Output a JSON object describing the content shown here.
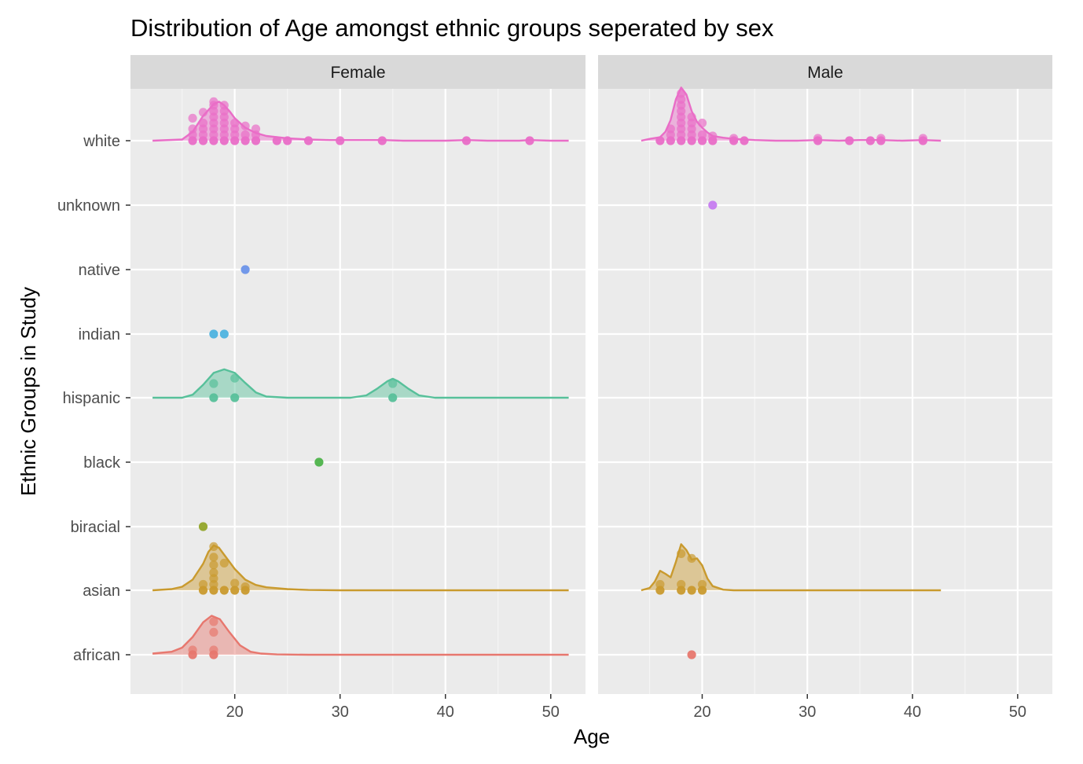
{
  "chart_data": {
    "type": "ridgeline-dotplot",
    "title": "Distribution of Age amongst ethnic groups seperated by sex",
    "xlabel": "Age",
    "ylabel": "Ethnic Groups in Study",
    "xlim": [
      10.1,
      53.3
    ],
    "x_ticks": [
      20,
      30,
      40,
      50
    ],
    "x_tick_labels": [
      "20",
      "30",
      "40",
      "50"
    ],
    "categories": [
      "african",
      "asian",
      "biracial",
      "black",
      "hispanic",
      "indian",
      "native",
      "unknown",
      "white"
    ],
    "grid": true,
    "legend": "none",
    "colors": {
      "african": "#E7776E",
      "asian": "#C99A2E",
      "biracial": "#92A52A",
      "black": "#4DB34A",
      "hispanic": "#57C09A",
      "indian": "#4EB3DF",
      "native": "#6B93E9",
      "unknown": "#C67CF0",
      "white": "#E96DC7"
    },
    "panels": [
      {
        "label": "Female",
        "series": [
          {
            "group": "african",
            "density": {
              "x": [
                12.2,
                14,
                15,
                16,
                17,
                17.8,
                18.6,
                19.5,
                20.5,
                21.5,
                22.5,
                24,
                27,
                30,
                35,
                40,
                45,
                50,
                51.7
              ],
              "y": [
                0.02,
                0.05,
                0.12,
                0.3,
                0.55,
                0.66,
                0.6,
                0.38,
                0.16,
                0.05,
                0.02,
                0.005,
                0,
                0,
                0,
                0,
                0,
                0,
                0
              ]
            },
            "points": [
              {
                "x": 16,
                "h": 0
              },
              {
                "x": 16,
                "h": 0.08
              },
              {
                "x": 18,
                "h": 0
              },
              {
                "x": 18,
                "h": 0.08
              },
              {
                "x": 18,
                "h": 0.38
              },
              {
                "x": 18,
                "h": 0.56
              }
            ]
          },
          {
            "group": "asian",
            "density": {
              "x": [
                12.2,
                14,
                15,
                16,
                17,
                17.5,
                18,
                18.5,
                19,
                20,
                21,
                22,
                23,
                25,
                27,
                30,
                35,
                40,
                45,
                50,
                51.7
              ],
              "y": [
                0,
                0.02,
                0.06,
                0.18,
                0.45,
                0.65,
                0.76,
                0.72,
                0.6,
                0.36,
                0.18,
                0.09,
                0.05,
                0.02,
                0.005,
                0,
                0,
                0,
                0,
                0,
                0
              ]
            },
            "points": [
              {
                "x": 17,
                "h": 0
              },
              {
                "x": 17,
                "h": 0.1
              },
              {
                "x": 18,
                "h": 0
              },
              {
                "x": 18,
                "h": 0.1
              },
              {
                "x": 18,
                "h": 0.2
              },
              {
                "x": 18,
                "h": 0.3
              },
              {
                "x": 18,
                "h": 0.43
              },
              {
                "x": 18,
                "h": 0.56
              },
              {
                "x": 18,
                "h": 0.74
              },
              {
                "x": 19,
                "h": 0
              },
              {
                "x": 19,
                "h": 0.46
              },
              {
                "x": 20,
                "h": 0
              },
              {
                "x": 20,
                "h": 0.12
              },
              {
                "x": 21,
                "h": 0
              },
              {
                "x": 21,
                "h": 0.06
              }
            ]
          },
          {
            "group": "biracial",
            "points": [
              {
                "x": 17,
                "h": 0
              }
            ]
          },
          {
            "group": "black",
            "points": [
              {
                "x": 28,
                "h": 0
              }
            ]
          },
          {
            "group": "hispanic",
            "density": {
              "x": [
                12.2,
                15,
                16,
                17,
                18,
                19,
                20,
                21,
                22,
                23,
                25,
                28,
                31,
                32.5,
                33.5,
                34.5,
                35,
                35.5,
                36.5,
                37.5,
                39,
                42,
                45,
                50,
                51.7
              ],
              "y": [
                0,
                0,
                0.05,
                0.22,
                0.42,
                0.48,
                0.42,
                0.25,
                0.09,
                0.02,
                0,
                0,
                0,
                0.04,
                0.15,
                0.28,
                0.32,
                0.28,
                0.15,
                0.04,
                0,
                0,
                0,
                0,
                0
              ]
            },
            "points": [
              {
                "x": 18,
                "h": 0
              },
              {
                "x": 18,
                "h": 0.24
              },
              {
                "x": 20,
                "h": 0
              },
              {
                "x": 20,
                "h": 0.33
              },
              {
                "x": 35,
                "h": 0
              },
              {
                "x": 35,
                "h": 0.24
              }
            ]
          },
          {
            "group": "indian",
            "points": [
              {
                "x": 18,
                "h": 0
              },
              {
                "x": 19,
                "h": 0
              }
            ]
          },
          {
            "group": "native",
            "points": [
              {
                "x": 21,
                "h": 0
              }
            ]
          },
          {
            "group": "white",
            "density": {
              "x": [
                12.2,
                15,
                16,
                17,
                18,
                18.5,
                19,
                19.5,
                20,
                21,
                22,
                23,
                24,
                25,
                26,
                27,
                29,
                32,
                34,
                36,
                40,
                42,
                44,
                47,
                48,
                50,
                51.7
              ],
              "y": [
                0,
                0.02,
                0.15,
                0.42,
                0.62,
                0.66,
                0.6,
                0.5,
                0.38,
                0.22,
                0.13,
                0.08,
                0.06,
                0.04,
                0.03,
                0.02,
                0.01,
                0.01,
                0.01,
                0,
                0,
                0.01,
                0,
                0,
                0.01,
                0,
                0
              ]
            },
            "points": [
              {
                "x": 16,
                "h": 0
              },
              {
                "x": 16,
                "h": 0.1
              },
              {
                "x": 16,
                "h": 0.2
              },
              {
                "x": 16,
                "h": 0.38
              },
              {
                "x": 17,
                "h": 0
              },
              {
                "x": 17,
                "h": 0.1
              },
              {
                "x": 17,
                "h": 0.2
              },
              {
                "x": 17,
                "h": 0.3
              },
              {
                "x": 17,
                "h": 0.48
              },
              {
                "x": 18,
                "h": 0
              },
              {
                "x": 18,
                "h": 0.1
              },
              {
                "x": 18,
                "h": 0.2
              },
              {
                "x": 18,
                "h": 0.3
              },
              {
                "x": 18,
                "h": 0.4
              },
              {
                "x": 18,
                "h": 0.5
              },
              {
                "x": 18,
                "h": 0.6
              },
              {
                "x": 18,
                "h": 0.66
              },
              {
                "x": 19,
                "h": 0
              },
              {
                "x": 19,
                "h": 0.1
              },
              {
                "x": 19,
                "h": 0.2
              },
              {
                "x": 19,
                "h": 0.3
              },
              {
                "x": 19,
                "h": 0.4
              },
              {
                "x": 19,
                "h": 0.5
              },
              {
                "x": 19,
                "h": 0.6
              },
              {
                "x": 20,
                "h": 0
              },
              {
                "x": 20,
                "h": 0.1
              },
              {
                "x": 20,
                "h": 0.2
              },
              {
                "x": 20,
                "h": 0.3
              },
              {
                "x": 21,
                "h": 0
              },
              {
                "x": 21,
                "h": 0.1
              },
              {
                "x": 21,
                "h": 0.25
              },
              {
                "x": 22,
                "h": 0
              },
              {
                "x": 22,
                "h": 0.1
              },
              {
                "x": 22,
                "h": 0.2
              },
              {
                "x": 24,
                "h": 0
              },
              {
                "x": 25,
                "h": 0
              },
              {
                "x": 27,
                "h": 0
              },
              {
                "x": 30,
                "h": 0
              },
              {
                "x": 34,
                "h": 0
              },
              {
                "x": 42,
                "h": 0
              },
              {
                "x": 48,
                "h": 0
              }
            ]
          }
        ]
      },
      {
        "label": "Male",
        "series": [
          {
            "group": "african",
            "points": [
              {
                "x": 19,
                "h": 0
              }
            ]
          },
          {
            "group": "asian",
            "density": {
              "x": [
                14.2,
                15,
                15.5,
                16,
                16.5,
                17,
                17.5,
                18,
                18.5,
                19,
                19.5,
                20,
                20.5,
                21,
                22,
                23,
                25,
                28,
                30,
                35,
                40,
                42.7
              ],
              "y": [
                0,
                0.04,
                0.15,
                0.33,
                0.28,
                0.22,
                0.48,
                0.78,
                0.68,
                0.52,
                0.54,
                0.42,
                0.2,
                0.07,
                0.01,
                0,
                0,
                0,
                0,
                0,
                0,
                0
              ]
            },
            "points": [
              {
                "x": 16,
                "h": 0
              },
              {
                "x": 16,
                "h": 0.1
              },
              {
                "x": 18,
                "h": 0
              },
              {
                "x": 18,
                "h": 0.1
              },
              {
                "x": 18,
                "h": 0.62
              },
              {
                "x": 19,
                "h": 0
              },
              {
                "x": 19,
                "h": 0.54
              },
              {
                "x": 20,
                "h": 0
              },
              {
                "x": 20,
                "h": 0.1
              }
            ]
          },
          {
            "group": "unknown",
            "points": [
              {
                "x": 21,
                "h": 0
              }
            ]
          },
          {
            "group": "white",
            "density": {
              "x": [
                14.2,
                15,
                16,
                16.5,
                17,
                17.5,
                18,
                18.5,
                19,
                19.5,
                20,
                20.5,
                21,
                22,
                23,
                24,
                25,
                27,
                29,
                31,
                33,
                35,
                37,
                39,
                41,
                42.7
              ],
              "y": [
                0,
                0.03,
                0.06,
                0.15,
                0.35,
                0.7,
                0.9,
                0.78,
                0.5,
                0.32,
                0.22,
                0.14,
                0.08,
                0.05,
                0.03,
                0.02,
                0.01,
                0,
                0,
                0.01,
                0,
                0.01,
                0.01,
                0,
                0.01,
                0
              ]
            },
            "points": [
              {
                "x": 16,
                "h": 0
              },
              {
                "x": 17,
                "h": 0
              },
              {
                "x": 17,
                "h": 0.1
              },
              {
                "x": 17,
                "h": 0.2
              },
              {
                "x": 18,
                "h": 0
              },
              {
                "x": 18,
                "h": 0.1
              },
              {
                "x": 18,
                "h": 0.2
              },
              {
                "x": 18,
                "h": 0.3
              },
              {
                "x": 18,
                "h": 0.4
              },
              {
                "x": 18,
                "h": 0.5
              },
              {
                "x": 18,
                "h": 0.6
              },
              {
                "x": 18,
                "h": 0.7
              },
              {
                "x": 18,
                "h": 0.8
              },
              {
                "x": 19,
                "h": 0
              },
              {
                "x": 19,
                "h": 0.1
              },
              {
                "x": 19,
                "h": 0.2
              },
              {
                "x": 19,
                "h": 0.3
              },
              {
                "x": 19,
                "h": 0.4
              },
              {
                "x": 20,
                "h": 0
              },
              {
                "x": 20,
                "h": 0.1
              },
              {
                "x": 20,
                "h": 0.3
              },
              {
                "x": 21,
                "h": 0
              },
              {
                "x": 21,
                "h": 0.08
              },
              {
                "x": 23,
                "h": 0
              },
              {
                "x": 23,
                "h": 0.04
              },
              {
                "x": 24,
                "h": 0
              },
              {
                "x": 31,
                "h": 0
              },
              {
                "x": 31,
                "h": 0.04
              },
              {
                "x": 34,
                "h": 0
              },
              {
                "x": 36,
                "h": 0
              },
              {
                "x": 37,
                "h": 0
              },
              {
                "x": 37,
                "h": 0.04
              },
              {
                "x": 41,
                "h": 0
              },
              {
                "x": 41,
                "h": 0.04
              }
            ]
          }
        ]
      }
    ]
  }
}
